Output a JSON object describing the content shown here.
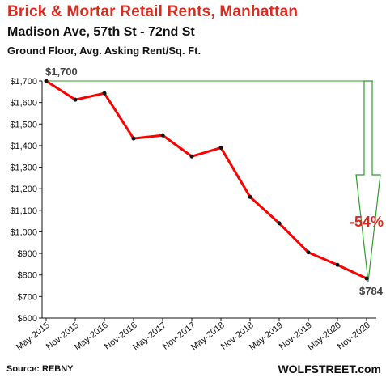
{
  "header": {
    "title": "Brick & Mortar Retail Rents, Manhattan",
    "subtitle": "Madison Ave, 57th St - 72nd St",
    "subtitle2": "Ground Floor, Avg. Asking Rent/Sq. Ft."
  },
  "footer": {
    "source": "Source: REBNY",
    "brand": "WOLFSTREET.com"
  },
  "chart_data": {
    "type": "line",
    "categories": [
      "May-2015",
      "Nov-2015",
      "May-2016",
      "Nov-2016",
      "May-2017",
      "Nov-2017",
      "May-2018",
      "Nov-2018",
      "May-2019",
      "Nov-2019",
      "May-2020",
      "Nov-2020"
    ],
    "series": [
      {
        "values": [
          1700,
          1613,
          1643,
          1433,
          1448,
          1350,
          1390,
          1162,
          1040,
          905,
          847,
          784
        ],
        "color": "#ff0000"
      }
    ],
    "ylim": [
      600,
      1700
    ],
    "yticks": [
      "$600",
      "$700",
      "$800",
      "$900",
      "$1,000",
      "$1,100",
      "$1,200",
      "$1,300",
      "$1,400",
      "$1,500",
      "$1,600",
      "$1,700"
    ],
    "grid": false,
    "annotations": {
      "start_label": "$1,700",
      "end_label": "$784",
      "change_label": "-54%",
      "arrow_color": "#2e9e2e"
    }
  }
}
